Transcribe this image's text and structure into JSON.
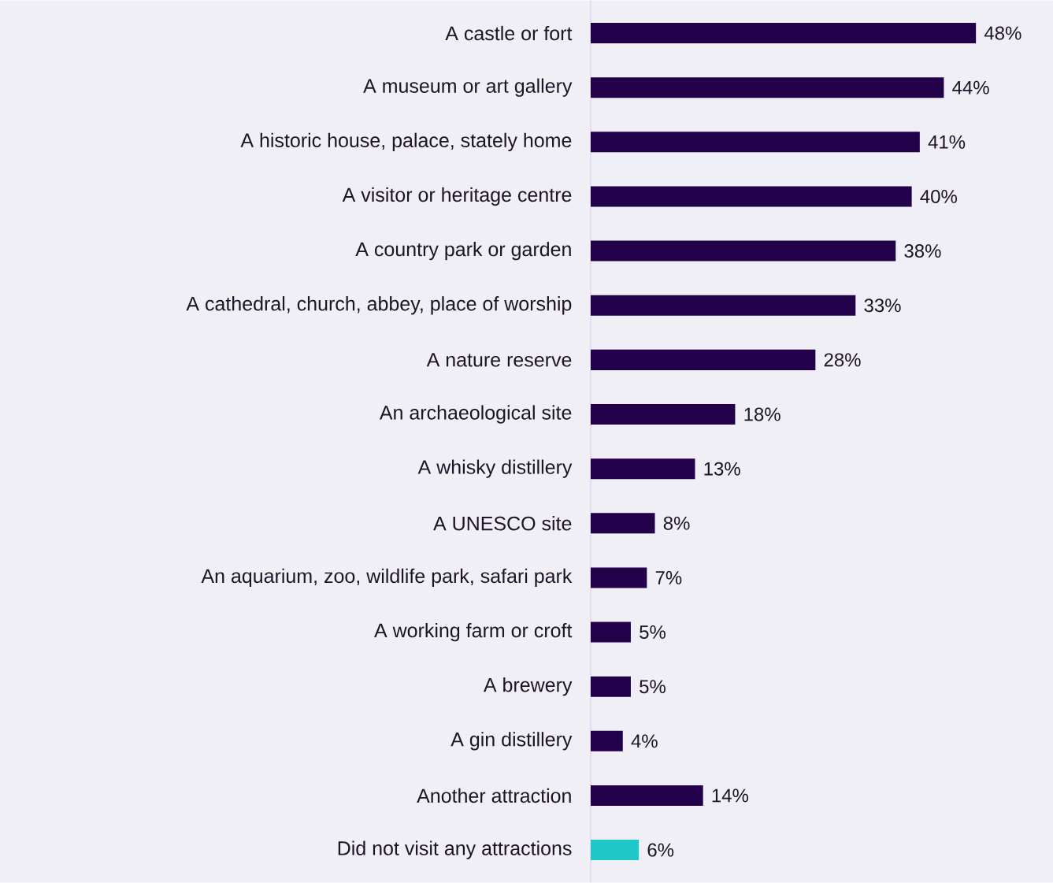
{
  "chart_data": {
    "type": "bar",
    "orientation": "horizontal",
    "categories": [
      "A castle or fort",
      "A museum or art gallery",
      "A historic house, palace, stately home",
      "A visitor or heritage centre",
      "A country park or garden",
      "A cathedral, church, abbey, place of worship",
      "A nature reserve",
      "An archaeological site",
      "A whisky distillery",
      "A UNESCO site",
      "An aquarium, zoo, wildlife park, safari park",
      "A working farm or croft",
      "A brewery",
      "A gin distillery",
      "Another attraction",
      "Did not visit any attractions"
    ],
    "values": [
      48,
      44,
      41,
      40,
      38,
      33,
      28,
      18,
      13,
      8,
      7,
      5,
      5,
      4,
      14,
      6
    ],
    "value_labels": [
      "48%",
      "44%",
      "41%",
      "40%",
      "38%",
      "33%",
      "28%",
      "18%",
      "13%",
      "8%",
      "7%",
      "5%",
      "5%",
      "4%",
      "14%",
      "6%"
    ],
    "colors": [
      "#22004a",
      "#22004a",
      "#22004a",
      "#22004a",
      "#22004a",
      "#22004a",
      "#22004a",
      "#22004a",
      "#22004a",
      "#22004a",
      "#22004a",
      "#22004a",
      "#22004a",
      "#22004a",
      "#22004a",
      "#1ec8c8"
    ]
  }
}
